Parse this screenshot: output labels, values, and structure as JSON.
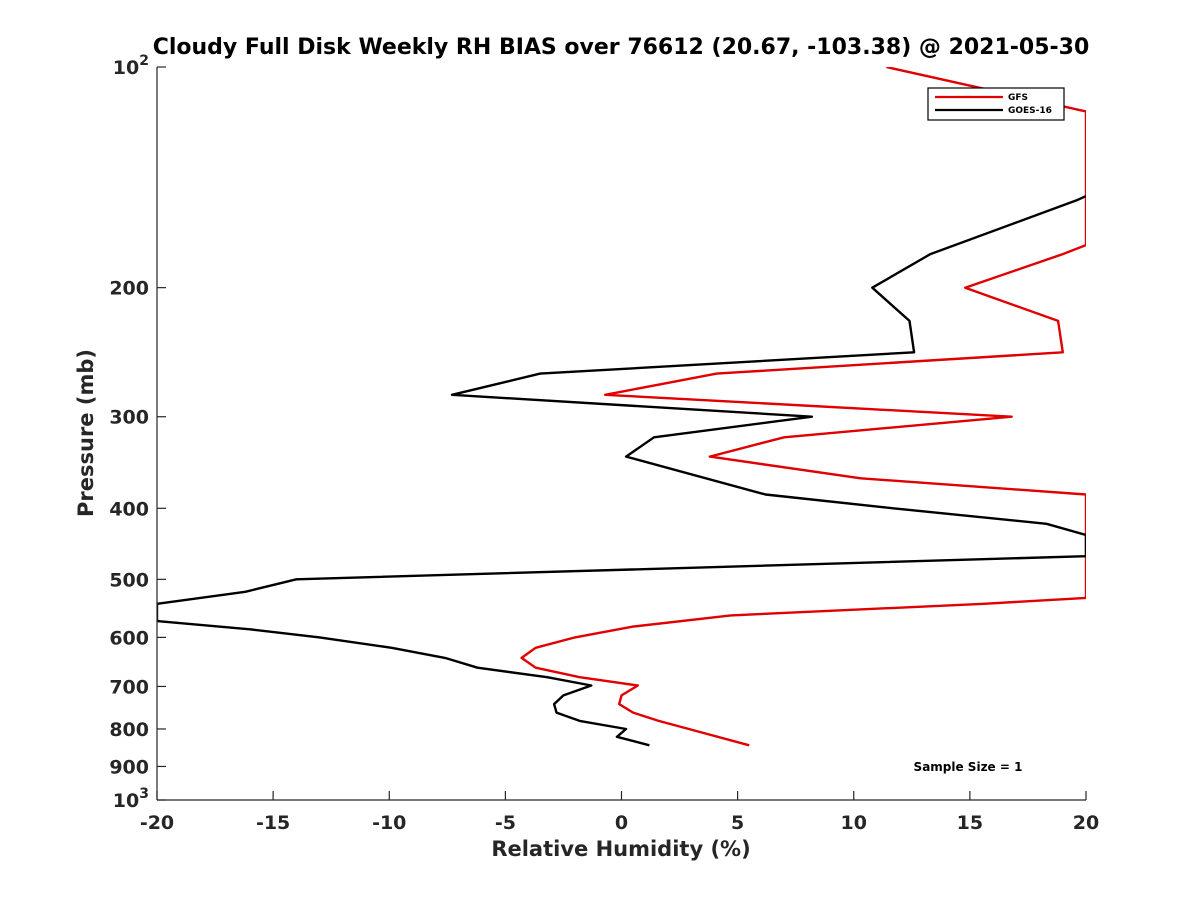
{
  "chart_data": {
    "type": "line",
    "title": "Cloudy Full Disk Weekly RH BIAS over 76612 (20.67, -103.38) @ 2021-05-30",
    "xlabel": "Relative Humidity (%)",
    "ylabel": "Pressure (mb)",
    "xlim": [
      -20,
      20
    ],
    "ylim": [
      100,
      1000
    ],
    "y_scale": "log",
    "y_reversed": true,
    "x_ticks": [
      -20,
      -15,
      -10,
      -5,
      0,
      5,
      10,
      15,
      20
    ],
    "x_tick_labels": [
      "-20",
      "-15",
      "-10",
      "-5",
      "0",
      "5",
      "10",
      "15",
      "20"
    ],
    "y_ticks": [
      100,
      200,
      300,
      400,
      500,
      600,
      700,
      800,
      900,
      1000
    ],
    "y_tick_labels": [
      "10^2",
      "200",
      "300",
      "400",
      "500",
      "600",
      "700",
      "800",
      "900",
      "10^3"
    ],
    "grid": false,
    "legend_position": "top-right",
    "annotation": "Sample Size = 1",
    "series": [
      {
        "name": "GFS",
        "color": "#e00000",
        "points": [
          [
            11.4,
            100
          ],
          [
            20,
            115
          ],
          [
            20,
            175
          ],
          [
            19.0,
            180
          ],
          [
            14.8,
            200
          ],
          [
            18.8,
            222
          ],
          [
            19.0,
            245
          ],
          [
            4.1,
            262
          ],
          [
            -0.7,
            280
          ],
          [
            16.8,
            300
          ],
          [
            7.0,
            320
          ],
          [
            3.8,
            340
          ],
          [
            10.3,
            364
          ],
          [
            20,
            383
          ],
          [
            20,
            530
          ],
          [
            15.6,
            540
          ],
          [
            4.7,
            560
          ],
          [
            0.5,
            580
          ],
          [
            -2.0,
            600
          ],
          [
            -3.7,
            620
          ],
          [
            -4.3,
            640
          ],
          [
            -3.7,
            660
          ],
          [
            -1.8,
            680
          ],
          [
            0.7,
            698
          ],
          [
            0.0,
            720
          ],
          [
            -0.1,
            740
          ],
          [
            0.5,
            760
          ],
          [
            1.6,
            780
          ],
          [
            3.2,
            805
          ],
          [
            5.5,
            842
          ]
        ]
      },
      {
        "name": "GOES-16",
        "color": "#000000",
        "points": [
          [
            20,
            150
          ],
          [
            19.6,
            152
          ],
          [
            13.3,
            180
          ],
          [
            10.8,
            200
          ],
          [
            12.4,
            222
          ],
          [
            12.6,
            245
          ],
          [
            -3.5,
            262
          ],
          [
            -7.3,
            280
          ],
          [
            8.2,
            300
          ],
          [
            1.4,
            320
          ],
          [
            0.2,
            340
          ],
          [
            6.2,
            383
          ],
          [
            11.7,
            400
          ],
          [
            18.3,
            420
          ],
          [
            20,
            435
          ],
          [
            20,
            465
          ],
          [
            -14.0,
            500
          ],
          [
            -16.2,
            520
          ],
          [
            -20,
            540
          ],
          [
            -20,
            570
          ],
          [
            -16.0,
            585
          ],
          [
            -13.0,
            600
          ],
          [
            -9.9,
            620
          ],
          [
            -7.6,
            640
          ],
          [
            -6.2,
            660
          ],
          [
            -3.2,
            680
          ],
          [
            -1.3,
            698
          ],
          [
            -2.5,
            720
          ],
          [
            -2.9,
            740
          ],
          [
            -2.8,
            760
          ],
          [
            -1.8,
            780
          ],
          [
            0.2,
            800
          ],
          [
            -0.2,
            820
          ],
          [
            1.2,
            842
          ]
        ]
      }
    ]
  }
}
